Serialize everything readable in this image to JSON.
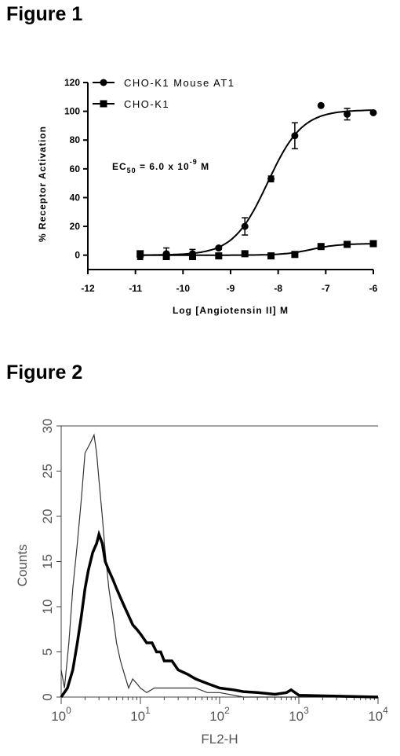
{
  "figure1": {
    "title": "Figure 1"
  },
  "figure2": {
    "title": "Figure 2"
  },
  "chart_data": [
    {
      "type": "scatter",
      "xlabel": "Log [Angiotensin II] M",
      "ylabel": "% Receptor Activation",
      "xlim": [
        -12,
        -6
      ],
      "ylim": [
        -10,
        120
      ],
      "xticks": [
        -12,
        -11,
        -10,
        -9,
        -8,
        -7,
        -6
      ],
      "yticks": [
        0,
        20,
        40,
        60,
        80,
        100,
        120
      ],
      "xtick_labels": [
        "-12",
        "-11",
        "-10",
        "-9",
        "-8",
        "-7",
        "-6"
      ],
      "ytick_labels": [
        "0",
        "20",
        "40",
        "60",
        "80",
        "100",
        "120"
      ],
      "annotation": {
        "prefix": "EC",
        "sub": "50",
        "mid": " = 6.0 x 10",
        "sup": "-9",
        "suffix": " M"
      },
      "legend_position": "top-left",
      "series": [
        {
          "name": "CHO-K1 Mouse AT1",
          "marker": "circle",
          "x": [
            -10.9,
            -10.35,
            -9.8,
            -9.25,
            -8.7,
            -8.15,
            -7.65,
            -7.1,
            -6.55,
            -6.0
          ],
          "y": [
            -1,
            1,
            1,
            5,
            20,
            53,
            83,
            104,
            98,
            99
          ],
          "err": [
            2,
            4,
            3,
            1,
            6,
            2,
            9,
            0,
            4,
            0
          ],
          "fit": {
            "bottom": 0,
            "top": 101,
            "logEC50": -8.22,
            "hill": 1.2
          }
        },
        {
          "name": "CHO-K1",
          "marker": "square",
          "x": [
            -10.9,
            -10.35,
            -9.8,
            -9.25,
            -8.7,
            -8.15,
            -7.65,
            -7.1,
            -6.55,
            -6.0
          ],
          "y": [
            1,
            -1,
            -1,
            -0.5,
            1,
            -0.5,
            0.5,
            6,
            7.5,
            8
          ],
          "err": [
            1,
            1,
            1,
            0.5,
            0.5,
            0.5,
            0.5,
            1,
            1,
            0.5
          ],
          "fit": {
            "bottom": 0,
            "top": 8,
            "logEC50": -7.3,
            "hill": 1.5
          }
        }
      ]
    },
    {
      "type": "line",
      "xlabel": "FL2-H",
      "ylabel": "Counts",
      "xscale": "log",
      "xlim": [
        1,
        10000
      ],
      "ylim": [
        0,
        30
      ],
      "yticks": [
        0,
        5,
        10,
        15,
        20,
        25,
        30
      ],
      "ytick_labels": [
        "0",
        "5",
        "10",
        "15",
        "20",
        "25",
        "30"
      ],
      "xtick_labels": [
        {
          "base": "10",
          "exp": "0"
        },
        {
          "base": "10",
          "exp": "1"
        },
        {
          "base": "10",
          "exp": "2"
        },
        {
          "base": "10",
          "exp": "3"
        },
        {
          "base": "10",
          "exp": "4"
        }
      ],
      "series": [
        {
          "style": "thin",
          "x": [
            1.0,
            1.1,
            1.25,
            1.4,
            1.6,
            1.8,
            2.0,
            2.3,
            2.6,
            2.8,
            3.0,
            3.3,
            3.6,
            4.0,
            4.5,
            5.0,
            5.6,
            6.3,
            7.1,
            8.0,
            9.0,
            10,
            12,
            15,
            20,
            30,
            50,
            70,
            100,
            200,
            500,
            1000,
            10000
          ],
          "y": [
            3,
            1,
            6,
            12,
            17,
            22,
            27,
            28,
            29,
            27,
            24,
            20,
            16,
            12,
            9,
            6,
            4,
            2.5,
            1,
            2,
            1.5,
            1,
            0.5,
            1,
            1,
            1,
            1,
            0.5,
            0.5,
            0,
            0,
            0,
            0
          ]
        },
        {
          "style": "thick",
          "x": [
            1.0,
            1.2,
            1.4,
            1.6,
            1.8,
            2.0,
            2.2,
            2.5,
            2.8,
            3.0,
            3.3,
            3.6,
            4.0,
            4.5,
            5.0,
            5.6,
            6.3,
            7.1,
            8.0,
            9.0,
            10,
            12,
            14,
            16,
            18,
            20,
            25,
            30,
            40,
            50,
            70,
            100,
            150,
            200,
            300,
            500,
            700,
            800,
            1000,
            10000
          ],
          "y": [
            0,
            1,
            3,
            6,
            9,
            12,
            14,
            16,
            17,
            18,
            17,
            15,
            14,
            13,
            12,
            11,
            10,
            9,
            8,
            7.5,
            7,
            6,
            6,
            5,
            5,
            4,
            4,
            3,
            2.5,
            2,
            1.5,
            1,
            0.8,
            0.6,
            0.5,
            0.3,
            0.5,
            0.8,
            0.2,
            0
          ]
        }
      ]
    }
  ]
}
